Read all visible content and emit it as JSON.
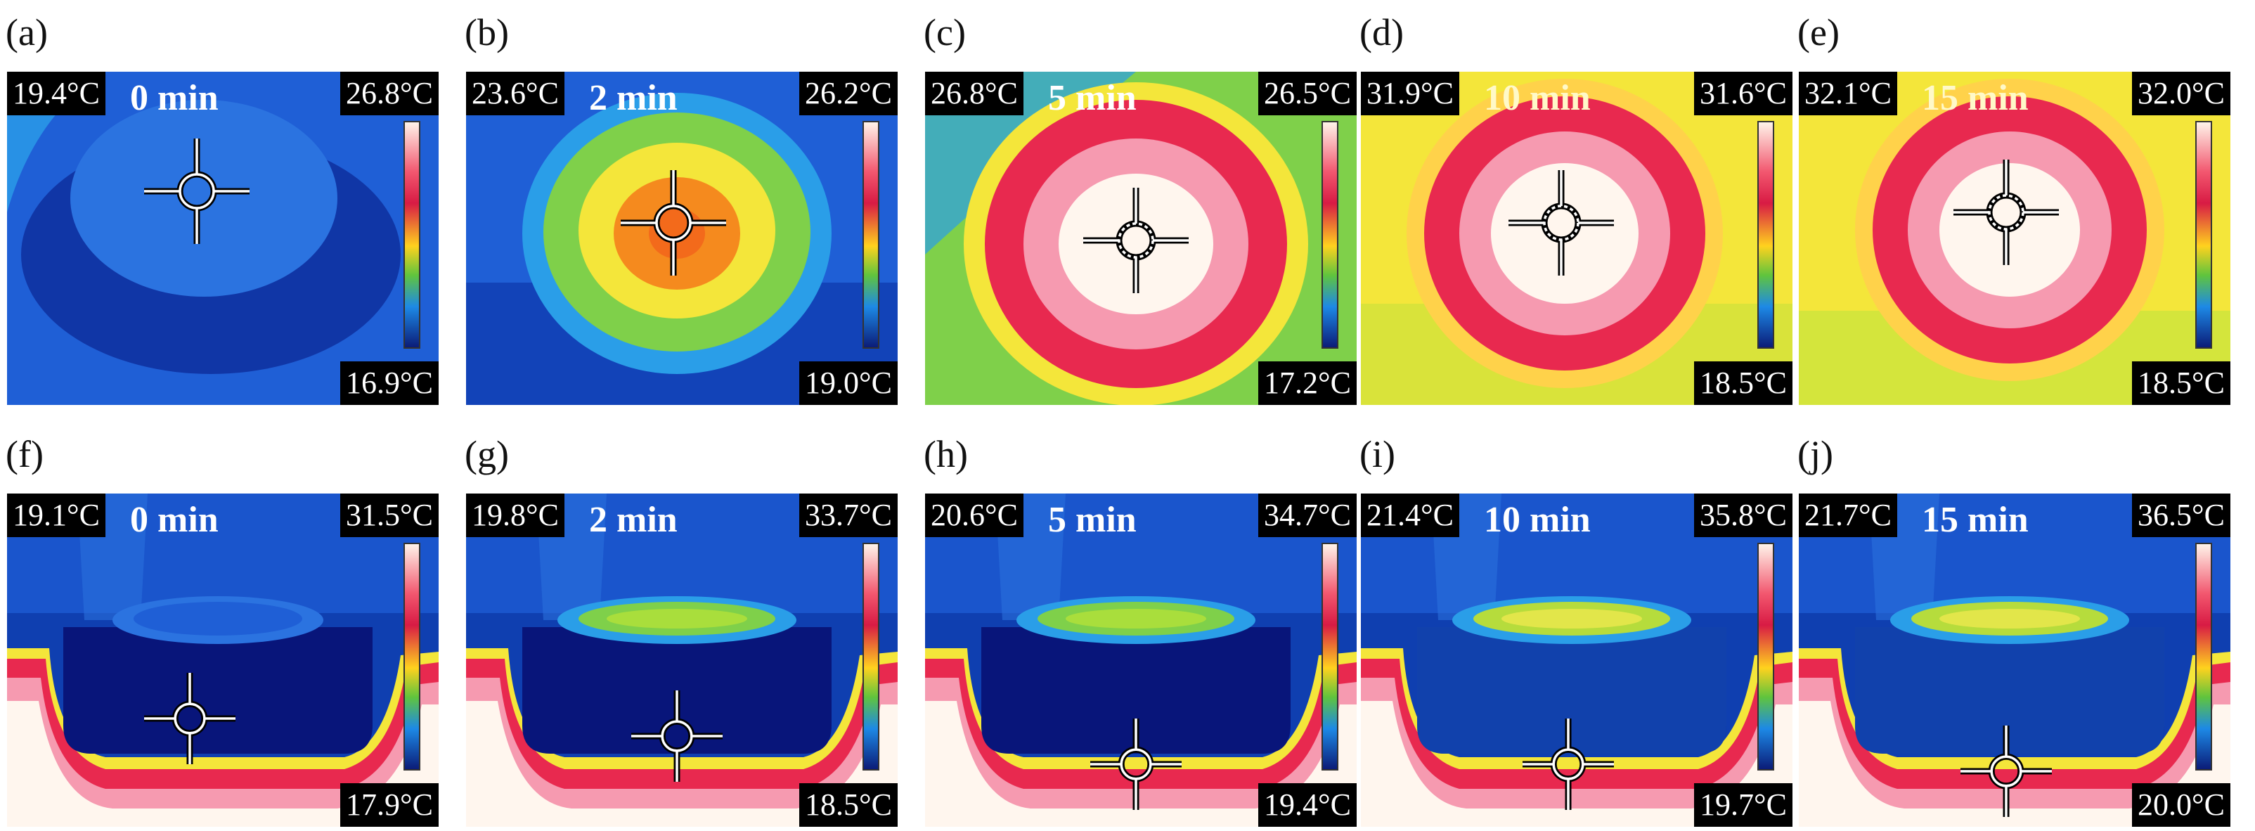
{
  "palette": {
    "deep_blue": "#0c2a96",
    "blue": "#1f5fd6",
    "cyan": "#2a9ee8",
    "green": "#7fd04a",
    "yellow": "#f4e63a",
    "orange": "#f58a1e",
    "red": "#e8294f",
    "pink": "#f69ab0",
    "white_hot": "#fff6ee"
  },
  "panels": [
    {
      "label": "(a)",
      "time": "0 min",
      "left_temp": "19.4°C",
      "max_temp": "26.8°C",
      "min_temp": "16.9°C",
      "view": "top",
      "stage": 0
    },
    {
      "label": "(b)",
      "time": "2 min",
      "left_temp": "23.6°C",
      "max_temp": "26.2°C",
      "min_temp": "19.0°C",
      "view": "top",
      "stage": 1
    },
    {
      "label": "(c)",
      "time": "5 min",
      "left_temp": "26.8°C",
      "max_temp": "26.5°C",
      "min_temp": "17.2°C",
      "view": "top",
      "stage": 2
    },
    {
      "label": "(d)",
      "time": "10 min",
      "left_temp": "31.9°C",
      "max_temp": "31.6°C",
      "min_temp": "18.5°C",
      "view": "top",
      "stage": 3
    },
    {
      "label": "(e)",
      "time": "15 min",
      "left_temp": "32.1°C",
      "max_temp": "32.0°C",
      "min_temp": "18.5°C",
      "view": "top",
      "stage": 4
    },
    {
      "label": "(f)",
      "time": "0 min",
      "left_temp": "19.1°C",
      "max_temp": "31.5°C",
      "min_temp": "17.9°C",
      "view": "side",
      "stage": 0
    },
    {
      "label": "(g)",
      "time": "2 min",
      "left_temp": "19.8°C",
      "max_temp": "33.7°C",
      "min_temp": "18.5°C",
      "view": "side",
      "stage": 1
    },
    {
      "label": "(h)",
      "time": "5 min",
      "left_temp": "20.6°C",
      "max_temp": "34.7°C",
      "min_temp": "19.4°C",
      "view": "side",
      "stage": 2
    },
    {
      "label": "(i)",
      "time": "10 min",
      "left_temp": "21.4°C",
      "max_temp": "35.8°C",
      "min_temp": "19.7°C",
      "view": "side",
      "stage": 3
    },
    {
      "label": "(j)",
      "time": "15 min",
      "left_temp": "21.7°C",
      "max_temp": "36.5°C",
      "min_temp": "20.0°C",
      "view": "side",
      "stage": 4
    }
  ]
}
